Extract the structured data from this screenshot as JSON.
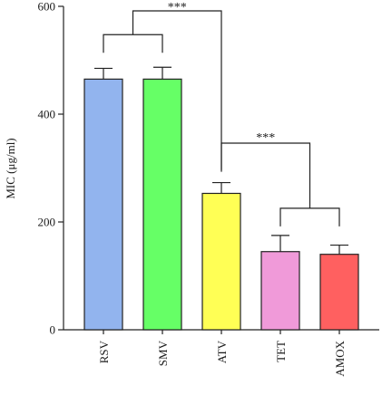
{
  "chart_data": {
    "type": "bar",
    "categories": [
      "RSV",
      "SMV",
      "ATV",
      "TET",
      "AMOX"
    ],
    "values": [
      465,
      465,
      253,
      145,
      140
    ],
    "errors": [
      20,
      22,
      20,
      30,
      17
    ],
    "colors": [
      "#92b4ee",
      "#66ff66",
      "#ffff55",
      "#f09ad9",
      "#ff6060"
    ],
    "ylabel": "MIC (μg/ml)",
    "ylim": [
      0,
      600
    ],
    "yticks": [
      0,
      200,
      400,
      600
    ],
    "grid": false,
    "annotations": [
      {
        "label": "***",
        "left_group": [
          0,
          1
        ],
        "right_group": [
          2
        ]
      },
      {
        "label": "***",
        "left_group": [
          2
        ],
        "right_group": [
          3,
          4
        ]
      }
    ]
  }
}
